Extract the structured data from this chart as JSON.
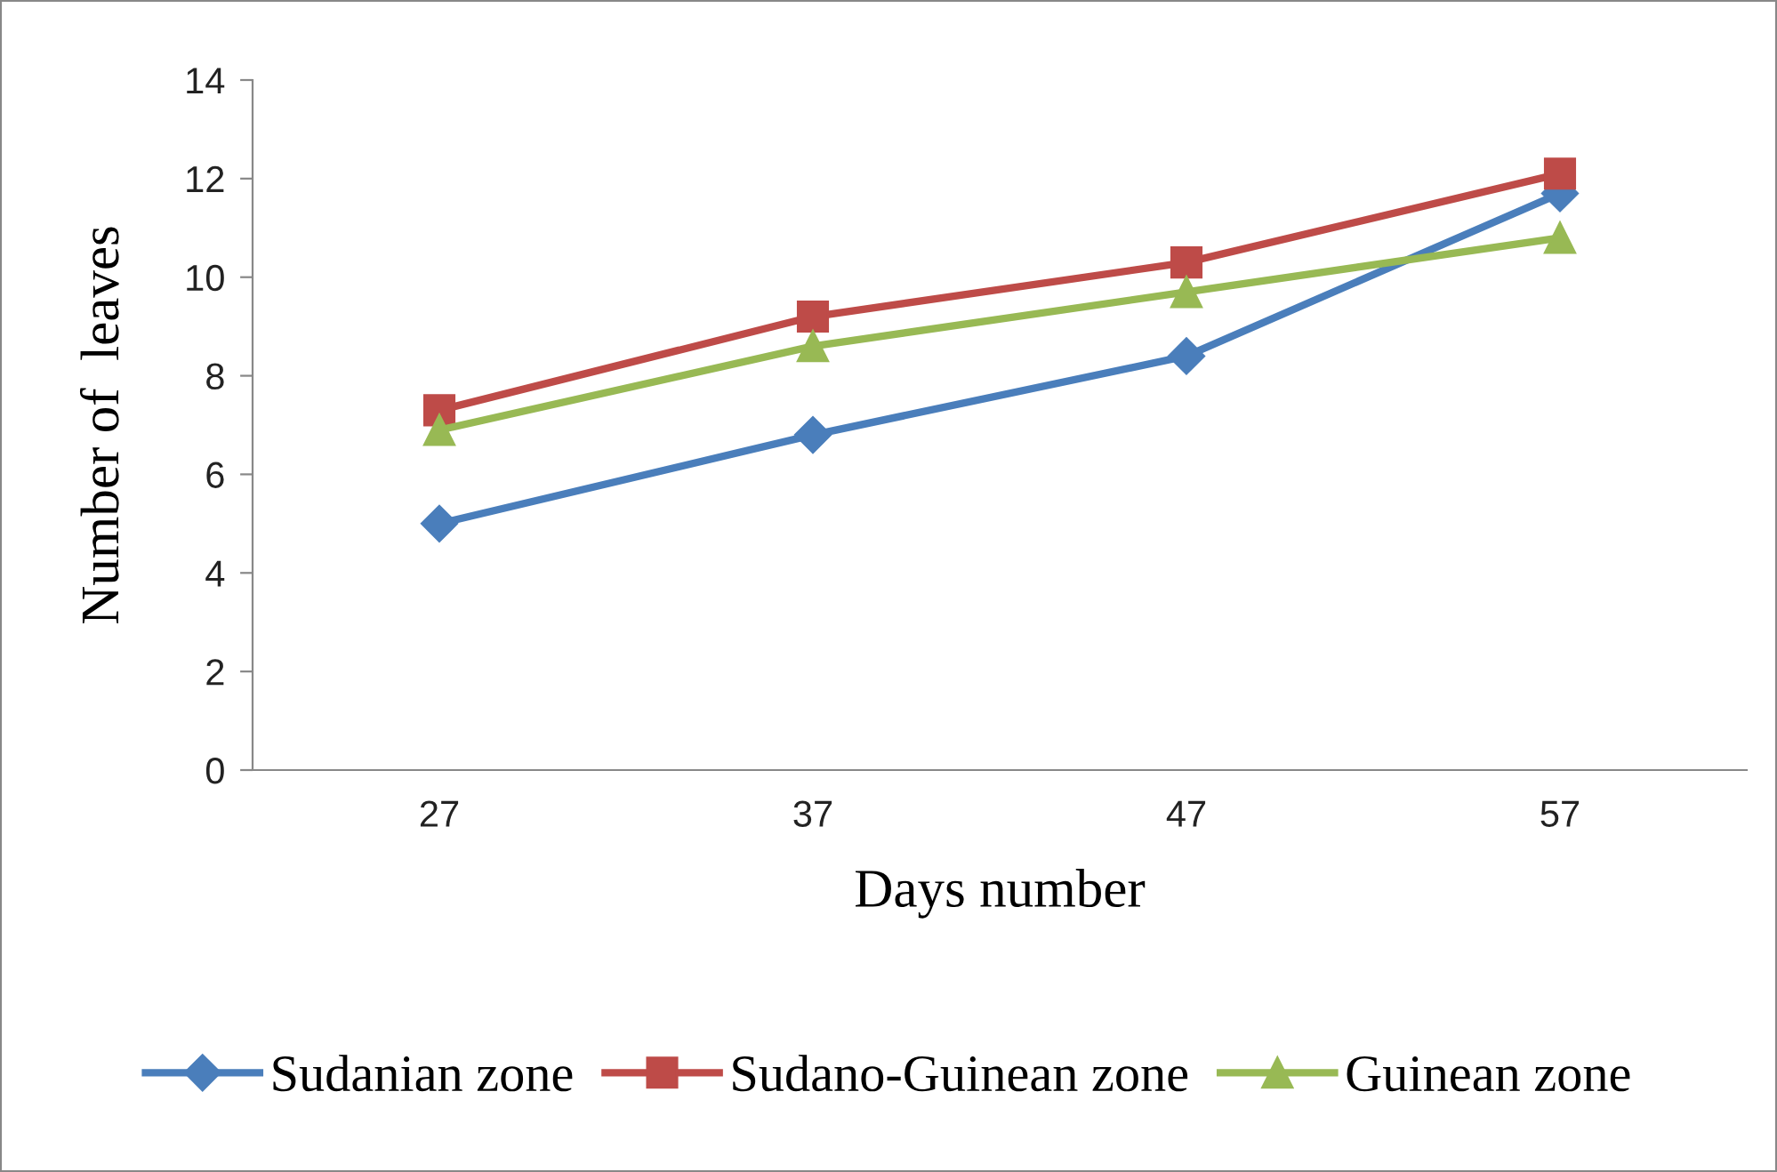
{
  "chart_data": {
    "type": "line",
    "xlabel": "Days number",
    "ylabel": "Number of  leaves",
    "categories": [
      "27",
      "37",
      "47",
      "57"
    ],
    "series": [
      {
        "name": "Sudanian zone",
        "color": "#4a7ebb",
        "marker": "diamond",
        "values": [
          5.0,
          6.8,
          8.4,
          11.7
        ]
      },
      {
        "name": "Sudano-Guinean zone",
        "color": "#be4b48",
        "marker": "square",
        "values": [
          7.3,
          9.2,
          10.3,
          12.1
        ]
      },
      {
        "name": "Guinean zone",
        "color": "#98b954",
        "marker": "triangle",
        "values": [
          6.9,
          8.6,
          9.7,
          10.8
        ]
      }
    ],
    "ylim": [
      0,
      14
    ],
    "yticks": [
      0,
      2,
      4,
      6,
      8,
      10,
      12,
      14
    ],
    "grid": false,
    "legend": "bottom",
    "line_style": "solid"
  }
}
